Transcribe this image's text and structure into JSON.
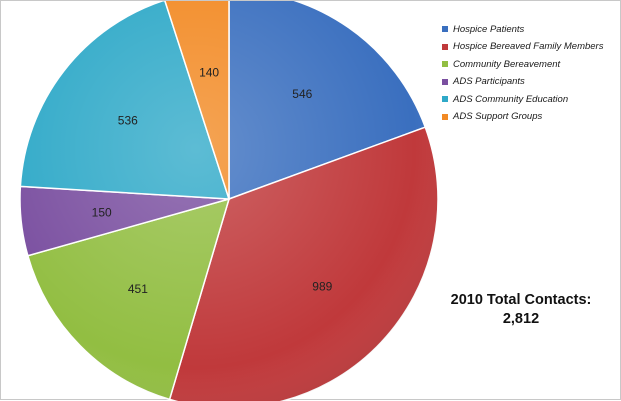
{
  "chart_data": {
    "type": "pie",
    "title": "",
    "slices": [
      {
        "label": "Hospice Patients",
        "value": 546,
        "color": "#3a6fbf"
      },
      {
        "label": "Hospice Bereaved Family Members",
        "value": 989,
        "color": "#c0393b"
      },
      {
        "label": "Community Bereavement",
        "value": 451,
        "color": "#92be42"
      },
      {
        "label": "ADS Participants",
        "value": 150,
        "color": "#7a4fa0"
      },
      {
        "label": "ADS Community Education",
        "value": 536,
        "color": "#2fa9c8"
      },
      {
        "label": "ADS Support Groups",
        "value": 140,
        "color": "#f28a24"
      }
    ],
    "legend_position": "top-right",
    "data_labels": true
  },
  "summary": {
    "line1": "2010 Total Contacts:",
    "line2": "2,812"
  }
}
